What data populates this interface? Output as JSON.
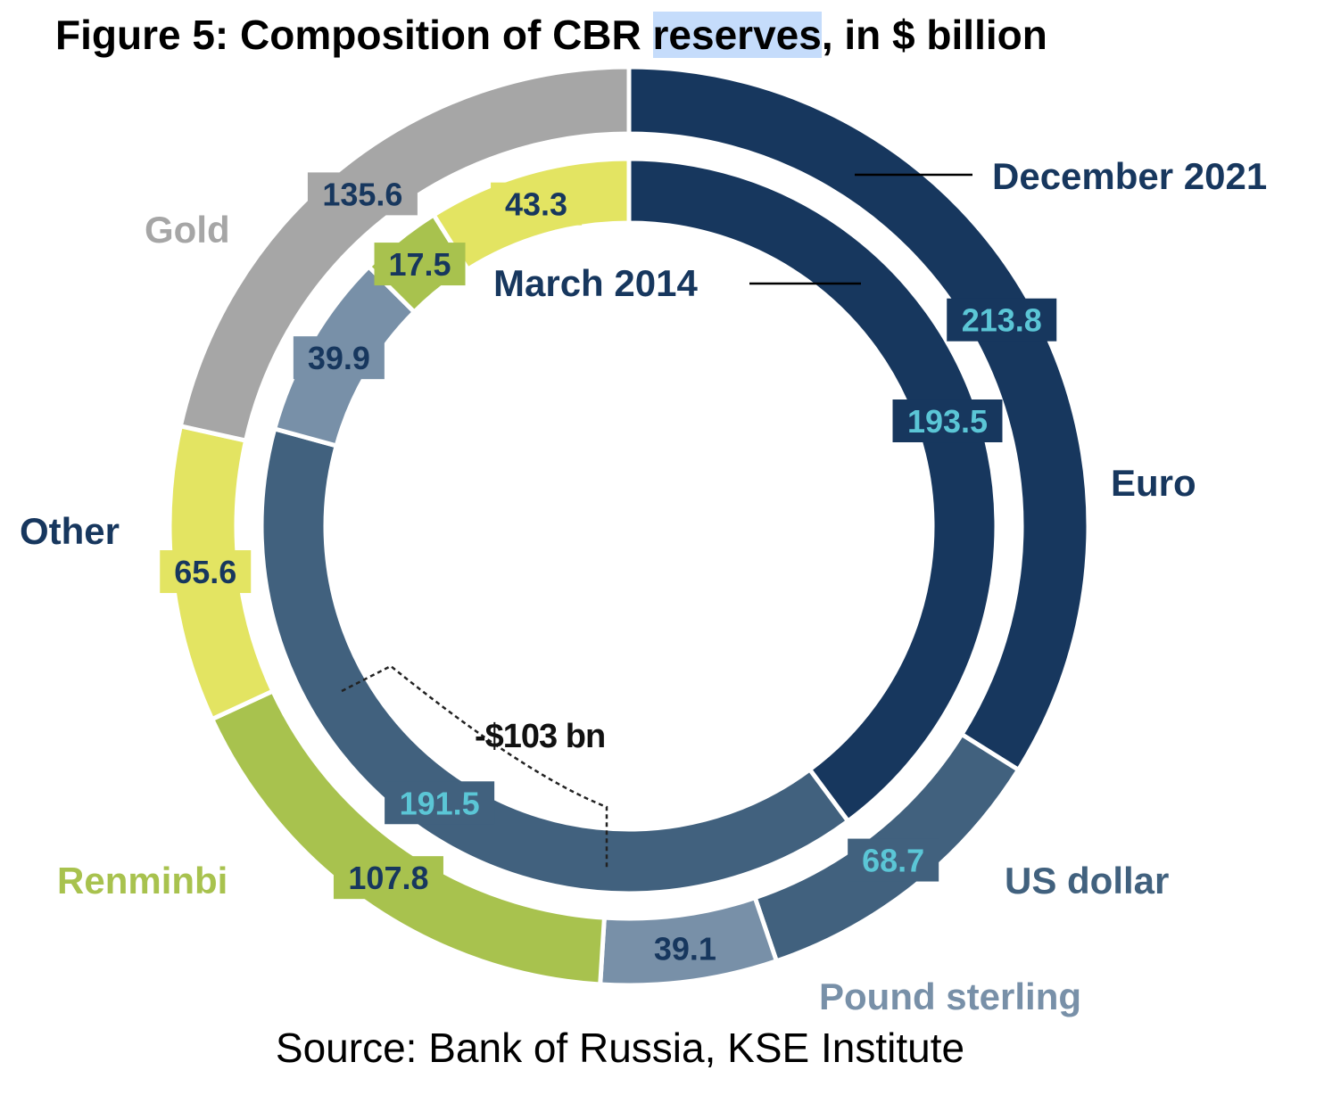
{
  "title": {
    "before": "Figure 5: Composition of CBR ",
    "highlight": "reserves",
    "after": ", in $ billion"
  },
  "source": "Source: Bank of Russia, KSE Institute",
  "chart_data": {
    "type": "pie",
    "rings": [
      {
        "name": "December 2021",
        "values": [
          {
            "category": "Euro",
            "value": 213.8,
            "label": "213.8"
          },
          {
            "category": "US dollar",
            "value": 68.7,
            "label": "68.7"
          },
          {
            "category": "Pound sterling",
            "value": 39.1,
            "label": "39.1"
          },
          {
            "category": "Renminbi",
            "value": 107.8,
            "label": "107.8"
          },
          {
            "category": "Other",
            "value": 65.6,
            "label": "65.6"
          },
          {
            "category": "Gold",
            "value": 135.6,
            "label": "135.6"
          }
        ]
      },
      {
        "name": "March 2014",
        "values": [
          {
            "category": "Euro",
            "value": 193.5,
            "label": "193.5"
          },
          {
            "category": "US dollar",
            "value": 191.5,
            "label": "191.5"
          },
          {
            "category": "Pound sterling",
            "value": 39.9,
            "label": "39.9"
          },
          {
            "category": "Renminbi",
            "value": 17.5,
            "label": "17.5"
          },
          {
            "category": "Other",
            "value": 43.3,
            "label": "43.3"
          }
        ]
      }
    ],
    "categories": [
      "Euro",
      "US dollar",
      "Pound sterling",
      "Renminbi",
      "Other",
      "Gold"
    ],
    "category_labels": {
      "Euro": "Euro",
      "US dollar": "US dollar",
      "Pound sterling": "Pound sterling",
      "Renminbi": "Renminbi",
      "Other": "Other",
      "Gold": "Gold"
    },
    "annotation": "-$103 bn",
    "colors": {
      "Euro": "#17375e",
      "US dollar": "#41617e",
      "Pound sterling": "#7890a8",
      "Renminbi": "#a8c24e",
      "Other": "#e3e462",
      "Gold": "#a6a6a6"
    }
  }
}
